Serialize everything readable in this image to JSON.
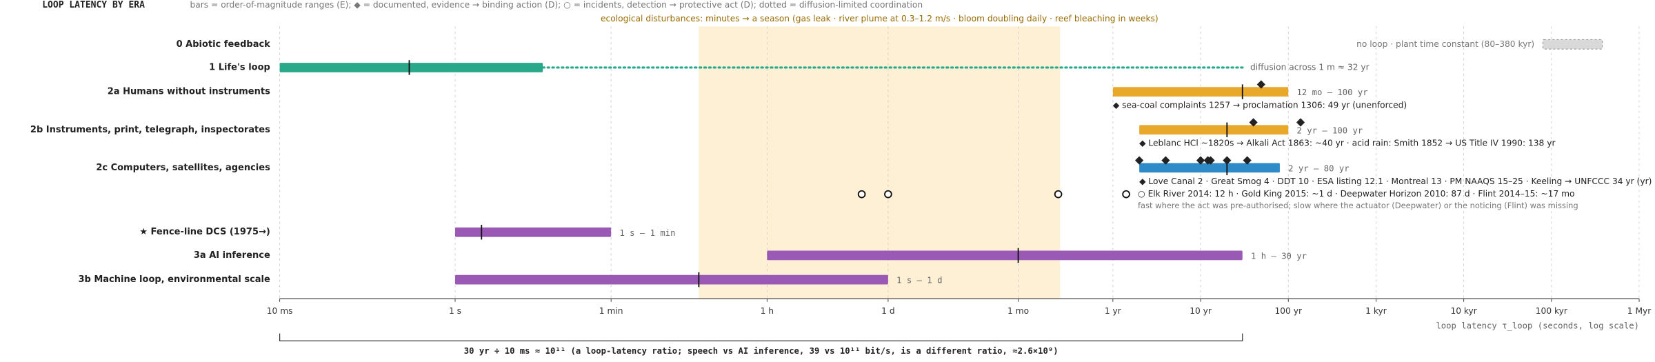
{
  "chart_data": {
    "type": "range",
    "title": "LOOP LATENCY BY ERA",
    "subtitle": "bars = order-of-magnitude ranges (E); ◆ = documented, evidence → binding action (D); ○ = incidents, detection → protective act (D); dotted = diffusion-limited coordination",
    "x_label": "loop latency τ_loop (seconds, log scale)",
    "log_x": true,
    "grid": true,
    "xlim": [
      0.01,
      31560000000000.0
    ],
    "xticks": [
      {
        "value": 0.01,
        "label": "10 ms"
      },
      {
        "value": 1,
        "label": "1 s"
      },
      {
        "value": 60,
        "label": "1 min"
      },
      {
        "value": 3600,
        "label": "1 h"
      },
      {
        "value": 86400,
        "label": "1 d"
      },
      {
        "value": 2630000,
        "label": "1 mo"
      },
      {
        "value": 31560000,
        "label": "1 yr"
      },
      {
        "value": 315600000,
        "label": "10 yr"
      },
      {
        "value": 3156000000,
        "label": "100 yr"
      },
      {
        "value": 31560000000,
        "label": "1 kyr"
      },
      {
        "value": 315600000000,
        "label": "10 kyr"
      },
      {
        "value": 3156000000000,
        "label": "100 kyr"
      },
      {
        "value": 31560000000000,
        "label": "1 Myr"
      }
    ],
    "shade": {
      "range": [
        600,
        7900000
      ],
      "color": "#fdf0d5",
      "label": "ecological disturbances: minutes → a season (gas leak · river plume at 0.3–1.2 m/s · bloom doubling daily · reef bleaching in weeks)"
    },
    "rows": [
      {
        "label": "0 Abiotic feedback",
        "range": [
          2520000000000,
          12000000000000
        ],
        "color": "#d9d9d9",
        "dashed": true,
        "note": "no loop · plant time constant (80–380 kyr)"
      },
      {
        "label": "1 Life's loop",
        "range": [
          0.01,
          10
        ],
        "median": 0.3,
        "color": "#2aa88a",
        "dotted_to": 1010000000,
        "note": "diffusion across 1 m ≈ 32 yr"
      },
      {
        "label": "2a Humans without instruments",
        "range": [
          31560000,
          3156000000
        ],
        "median": 947000000,
        "color": "#e8a92a",
        "range_label": "12 mo – 100 yr",
        "documented": [
          1546000000
        ],
        "note": "◆ sea-coal complaints 1257 → proclamation 1306: 49 yr (unenforced)"
      },
      {
        "label": "2b Instruments, print, telegraph, inspectorates",
        "range": [
          63100000,
          3156000000
        ],
        "median": 631000000,
        "color": "#e8a92a",
        "range_label": "2 yr – 100 yr",
        "documented": [
          1262000000,
          4355000000
        ],
        "note": "◆ Leblanc HCl ~1820s → Alkali Act 1863: ~40 yr · acid rain: Smith 1852 → US Title IV 1990: 138 yr"
      },
      {
        "label": "2c Computers, satellites, agencies",
        "range": [
          63100000,
          2525000000
        ],
        "median": 631000000,
        "color": "#2e8bc8",
        "range_label": "2 yr – 80 yr",
        "documented": [
          63100000,
          126200000,
          315600000,
          381900000,
          410300000,
          631000000,
          1073000000
        ],
        "note": "◆ Love Canal 2 · Great Smog 4 · DDT 10 · ESA listing 12.1 · Montreal 13 · PM NAAQS 15–25 · Keeling → UNFCCC 34 yr (yr)"
      },
      {
        "label": "★ Fence-line DCS (1975→)",
        "range": [
          1,
          60
        ],
        "median": 2,
        "color": "#9b59b6",
        "range_label": "1 s – 1 min"
      },
      {
        "label": "3a AI inference",
        "range": [
          3600,
          947000000
        ],
        "median": 2630000,
        "color": "#9b59b6",
        "range_label": "1 h – 30 yr"
      },
      {
        "label": "3b Machine loop, environmental scale",
        "range": [
          1,
          86400
        ],
        "median": 600,
        "color": "#9b59b6",
        "range_label": "1 s – 1 d"
      }
    ],
    "incidents": {
      "values": [
        43200,
        86400,
        7516800,
        44700000
      ],
      "notes": [
        "○ Elk River 2014: 12 h · Gold King 2015: ~1 d · Deepwater Horizon 2010: 87 d · Flint 2014–15: ~17 mo",
        "fast where the act was pre-authorised; slow where the actuator (Deepwater) or the noticing (Flint) was missing"
      ]
    },
    "bracket": {
      "range": [
        0.01,
        947000000
      ],
      "label": "30 yr ÷ 10 ms ≈ 10¹¹ (a loop-latency ratio; speech vs AI inference, 39 vs 10¹¹ bit/s, is a different ratio, ≈2.6×10⁹)"
    }
  }
}
